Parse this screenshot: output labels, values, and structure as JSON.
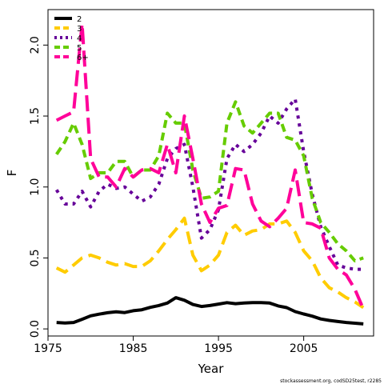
{
  "chart_data": {
    "type": "line",
    "title": "",
    "xlabel": "Year",
    "ylabel": "F",
    "xlim": [
      1975,
      2012
    ],
    "ylim": [
      0,
      2.25
    ],
    "xticks": [
      1975,
      1985,
      1995,
      2005
    ],
    "xtick_labels": [
      "1975",
      "1985",
      "1995",
      "2005"
    ],
    "yticks": [
      0.0,
      0.5,
      1.0,
      1.5,
      2.0
    ],
    "ytick_labels": [
      "0.0",
      "0.5",
      "1.0",
      "1.5",
      "2.0"
    ],
    "grid": false,
    "legend_position": "top-left",
    "footnote": "stockassessment.org, codSD25test, r2285",
    "x": [
      1976,
      1977,
      1978,
      1979,
      1980,
      1981,
      1982,
      1983,
      1984,
      1985,
      1986,
      1987,
      1988,
      1989,
      1990,
      1991,
      1992,
      1993,
      1994,
      1995,
      1996,
      1997,
      1998,
      1999,
      2000,
      2001,
      2002,
      2003,
      2004,
      2005,
      2006,
      2007,
      2008,
      2009,
      2010,
      2011,
      2012
    ],
    "series": [
      {
        "name": "2",
        "color": "#000000",
        "dash": "solid",
        "values": [
          0.045,
          0.042,
          0.045,
          0.068,
          0.092,
          0.104,
          0.114,
          0.12,
          0.115,
          0.128,
          0.135,
          0.152,
          0.165,
          0.182,
          0.22,
          0.202,
          0.172,
          0.158,
          0.165,
          0.175,
          0.185,
          0.178,
          0.182,
          0.185,
          0.185,
          0.182,
          0.162,
          0.15,
          0.122,
          0.105,
          0.09,
          0.07,
          0.06,
          0.052,
          0.045,
          0.04,
          0.035
        ]
      },
      {
        "name": "3",
        "color": "#ffcc00",
        "dash": "long",
        "values": [
          0.43,
          0.4,
          0.45,
          0.5,
          0.52,
          0.5,
          0.47,
          0.45,
          0.46,
          0.44,
          0.44,
          0.48,
          0.55,
          0.63,
          0.7,
          0.78,
          0.52,
          0.41,
          0.45,
          0.52,
          0.68,
          0.73,
          0.66,
          0.69,
          0.7,
          0.74,
          0.74,
          0.76,
          0.68,
          0.55,
          0.48,
          0.36,
          0.29,
          0.26,
          0.22,
          0.19,
          0.15
        ]
      },
      {
        "name": "4",
        "color": "#660099",
        "dash": "dot",
        "values": [
          0.98,
          0.88,
          0.88,
          0.97,
          0.86,
          0.97,
          1.02,
          0.99,
          1.0,
          0.95,
          0.9,
          0.93,
          1.02,
          1.2,
          1.27,
          1.3,
          1.0,
          0.64,
          0.7,
          0.84,
          1.2,
          1.3,
          1.25,
          1.3,
          1.38,
          1.5,
          1.45,
          1.55,
          1.62,
          1.25,
          0.95,
          0.72,
          0.58,
          0.45,
          0.43,
          0.42,
          0.42
        ]
      },
      {
        "name": "5",
        "color": "#66cc00",
        "dash": "dash",
        "values": [
          1.23,
          1.32,
          1.45,
          1.3,
          1.06,
          1.1,
          1.1,
          1.18,
          1.18,
          1.07,
          1.12,
          1.12,
          1.22,
          1.52,
          1.45,
          1.45,
          1.12,
          0.92,
          0.93,
          0.97,
          1.45,
          1.6,
          1.43,
          1.38,
          1.45,
          1.52,
          1.52,
          1.35,
          1.33,
          1.22,
          0.92,
          0.75,
          0.68,
          0.6,
          0.55,
          0.48,
          0.5
        ]
      },
      {
        "name": "6+",
        "color": "#ff0099",
        "dash": "longdash",
        "values": [
          1.47,
          1.5,
          1.53,
          2.15,
          1.2,
          1.07,
          1.07,
          1.0,
          1.13,
          1.07,
          1.12,
          1.13,
          1.1,
          1.3,
          1.1,
          1.5,
          1.2,
          0.88,
          0.75,
          0.85,
          0.87,
          1.13,
          1.12,
          0.88,
          0.76,
          0.72,
          0.78,
          0.85,
          1.12,
          0.75,
          0.74,
          0.71,
          0.5,
          0.42,
          0.38,
          0.28,
          0.14
        ]
      }
    ]
  }
}
